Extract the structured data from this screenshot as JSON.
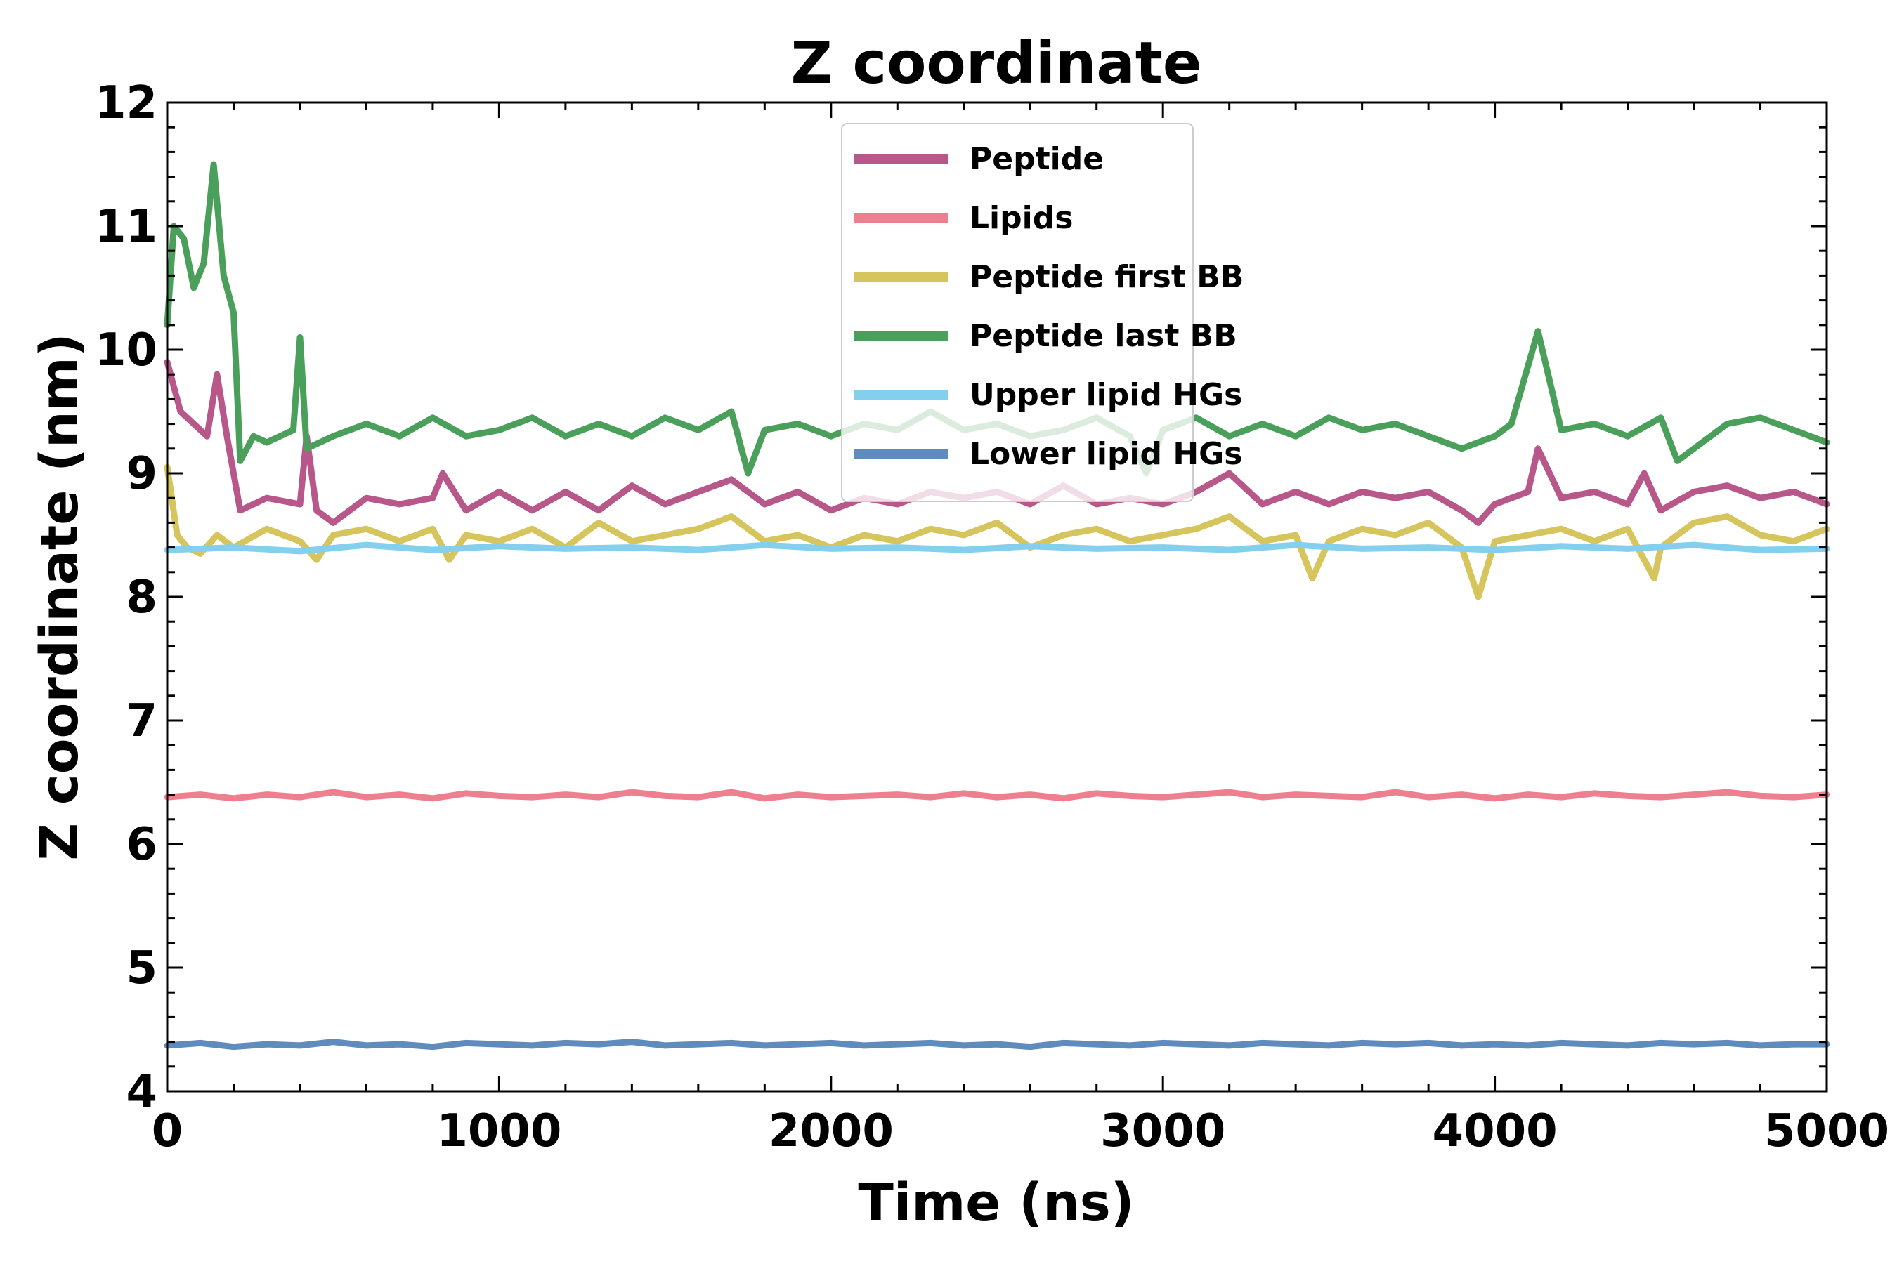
{
  "chart_data": {
    "type": "line",
    "title": "Z coordinate",
    "xlabel": "Time (ns)",
    "ylabel": "Z coordinate (nm)",
    "xlim": [
      0,
      5000
    ],
    "ylim": [
      4,
      12
    ],
    "xticks": [
      0,
      1000,
      2000,
      3000,
      4000,
      5000
    ],
    "yticks": [
      4,
      5,
      6,
      7,
      8,
      9,
      10,
      11,
      12
    ],
    "grid": false,
    "legend_position": "upper-center",
    "series": [
      {
        "name": "Peptide",
        "color": "#b8578a",
        "points": [
          [
            0,
            9.9
          ],
          [
            40,
            9.5
          ],
          [
            80,
            9.4
          ],
          [
            120,
            9.3
          ],
          [
            150,
            9.8
          ],
          [
            180,
            9.3
          ],
          [
            220,
            8.7
          ],
          [
            300,
            8.8
          ],
          [
            400,
            8.75
          ],
          [
            420,
            9.3
          ],
          [
            450,
            8.7
          ],
          [
            500,
            8.6
          ],
          [
            600,
            8.8
          ],
          [
            700,
            8.75
          ],
          [
            800,
            8.8
          ],
          [
            830,
            9.0
          ],
          [
            900,
            8.7
          ],
          [
            1000,
            8.85
          ],
          [
            1100,
            8.7
          ],
          [
            1200,
            8.85
          ],
          [
            1300,
            8.7
          ],
          [
            1400,
            8.9
          ],
          [
            1500,
            8.75
          ],
          [
            1600,
            8.85
          ],
          [
            1700,
            8.95
          ],
          [
            1800,
            8.75
          ],
          [
            1900,
            8.85
          ],
          [
            2000,
            8.7
          ],
          [
            2100,
            8.8
          ],
          [
            2200,
            8.75
          ],
          [
            2300,
            8.85
          ],
          [
            2400,
            8.8
          ],
          [
            2500,
            8.85
          ],
          [
            2600,
            8.75
          ],
          [
            2700,
            8.9
          ],
          [
            2800,
            8.75
          ],
          [
            2900,
            8.8
          ],
          [
            3000,
            8.75
          ],
          [
            3100,
            8.85
          ],
          [
            3200,
            9.0
          ],
          [
            3300,
            8.75
          ],
          [
            3400,
            8.85
          ],
          [
            3500,
            8.75
          ],
          [
            3600,
            8.85
          ],
          [
            3700,
            8.8
          ],
          [
            3800,
            8.85
          ],
          [
            3900,
            8.7
          ],
          [
            3950,
            8.6
          ],
          [
            4000,
            8.75
          ],
          [
            4100,
            8.85
          ],
          [
            4130,
            9.2
          ],
          [
            4200,
            8.8
          ],
          [
            4300,
            8.85
          ],
          [
            4400,
            8.75
          ],
          [
            4450,
            9.0
          ],
          [
            4500,
            8.7
          ],
          [
            4600,
            8.85
          ],
          [
            4700,
            8.9
          ],
          [
            4800,
            8.8
          ],
          [
            4900,
            8.85
          ],
          [
            5000,
            8.75
          ]
        ]
      },
      {
        "name": "Lipids",
        "color": "#ee7f8f",
        "points": [
          [
            0,
            6.38
          ],
          [
            100,
            6.4
          ],
          [
            200,
            6.37
          ],
          [
            300,
            6.4
          ],
          [
            400,
            6.38
          ],
          [
            500,
            6.42
          ],
          [
            600,
            6.38
          ],
          [
            700,
            6.4
          ],
          [
            800,
            6.37
          ],
          [
            900,
            6.41
          ],
          [
            1000,
            6.39
          ],
          [
            1100,
            6.38
          ],
          [
            1200,
            6.4
          ],
          [
            1300,
            6.38
          ],
          [
            1400,
            6.42
          ],
          [
            1500,
            6.39
          ],
          [
            1600,
            6.38
          ],
          [
            1700,
            6.42
          ],
          [
            1800,
            6.37
          ],
          [
            1900,
            6.4
          ],
          [
            2000,
            6.38
          ],
          [
            2100,
            6.39
          ],
          [
            2200,
            6.4
          ],
          [
            2300,
            6.38
          ],
          [
            2400,
            6.41
          ],
          [
            2500,
            6.38
          ],
          [
            2600,
            6.4
          ],
          [
            2700,
            6.37
          ],
          [
            2800,
            6.41
          ],
          [
            2900,
            6.39
          ],
          [
            3000,
            6.38
          ],
          [
            3100,
            6.4
          ],
          [
            3200,
            6.42
          ],
          [
            3300,
            6.38
          ],
          [
            3400,
            6.4
          ],
          [
            3500,
            6.39
          ],
          [
            3600,
            6.38
          ],
          [
            3700,
            6.42
          ],
          [
            3800,
            6.38
          ],
          [
            3900,
            6.4
          ],
          [
            4000,
            6.37
          ],
          [
            4100,
            6.4
          ],
          [
            4200,
            6.38
          ],
          [
            4300,
            6.41
          ],
          [
            4400,
            6.39
          ],
          [
            4500,
            6.38
          ],
          [
            4600,
            6.4
          ],
          [
            4700,
            6.42
          ],
          [
            4800,
            6.39
          ],
          [
            4900,
            6.38
          ],
          [
            5000,
            6.4
          ]
        ]
      },
      {
        "name": "Peptide first BB",
        "color": "#d6c55c",
        "points": [
          [
            0,
            9.05
          ],
          [
            30,
            8.5
          ],
          [
            60,
            8.4
          ],
          [
            100,
            8.35
          ],
          [
            150,
            8.5
          ],
          [
            200,
            8.4
          ],
          [
            300,
            8.55
          ],
          [
            400,
            8.45
          ],
          [
            450,
            8.3
          ],
          [
            500,
            8.5
          ],
          [
            600,
            8.55
          ],
          [
            700,
            8.45
          ],
          [
            800,
            8.55
          ],
          [
            850,
            8.3
          ],
          [
            900,
            8.5
          ],
          [
            1000,
            8.45
          ],
          [
            1100,
            8.55
          ],
          [
            1200,
            8.4
          ],
          [
            1300,
            8.6
          ],
          [
            1400,
            8.45
          ],
          [
            1500,
            8.5
          ],
          [
            1600,
            8.55
          ],
          [
            1700,
            8.65
          ],
          [
            1800,
            8.45
          ],
          [
            1900,
            8.5
          ],
          [
            2000,
            8.4
          ],
          [
            2100,
            8.5
          ],
          [
            2200,
            8.45
          ],
          [
            2300,
            8.55
          ],
          [
            2400,
            8.5
          ],
          [
            2500,
            8.6
          ],
          [
            2600,
            8.4
          ],
          [
            2700,
            8.5
          ],
          [
            2800,
            8.55
          ],
          [
            2900,
            8.45
          ],
          [
            3000,
            8.5
          ],
          [
            3100,
            8.55
          ],
          [
            3200,
            8.65
          ],
          [
            3300,
            8.45
          ],
          [
            3400,
            8.5
          ],
          [
            3450,
            8.15
          ],
          [
            3500,
            8.45
          ],
          [
            3600,
            8.55
          ],
          [
            3700,
            8.5
          ],
          [
            3800,
            8.6
          ],
          [
            3900,
            8.4
          ],
          [
            3950,
            8.0
          ],
          [
            4000,
            8.45
          ],
          [
            4100,
            8.5
          ],
          [
            4200,
            8.55
          ],
          [
            4300,
            8.45
          ],
          [
            4400,
            8.55
          ],
          [
            4480,
            8.15
          ],
          [
            4500,
            8.4
          ],
          [
            4600,
            8.6
          ],
          [
            4700,
            8.65
          ],
          [
            4800,
            8.5
          ],
          [
            4900,
            8.45
          ],
          [
            5000,
            8.55
          ]
        ]
      },
      {
        "name": "Peptide last BB",
        "color": "#4aa05a",
        "points": [
          [
            0,
            10.2
          ],
          [
            20,
            11.0
          ],
          [
            50,
            10.9
          ],
          [
            80,
            10.5
          ],
          [
            110,
            10.7
          ],
          [
            140,
            11.5
          ],
          [
            170,
            10.6
          ],
          [
            200,
            10.3
          ],
          [
            220,
            9.1
          ],
          [
            260,
            9.3
          ],
          [
            300,
            9.25
          ],
          [
            380,
            9.35
          ],
          [
            400,
            10.1
          ],
          [
            420,
            9.2
          ],
          [
            500,
            9.3
          ],
          [
            600,
            9.4
          ],
          [
            700,
            9.3
          ],
          [
            800,
            9.45
          ],
          [
            900,
            9.3
          ],
          [
            1000,
            9.35
          ],
          [
            1100,
            9.45
          ],
          [
            1200,
            9.3
          ],
          [
            1300,
            9.4
          ],
          [
            1400,
            9.3
          ],
          [
            1500,
            9.45
          ],
          [
            1600,
            9.35
          ],
          [
            1700,
            9.5
          ],
          [
            1750,
            9.0
          ],
          [
            1800,
            9.35
          ],
          [
            1900,
            9.4
          ],
          [
            2000,
            9.3
          ],
          [
            2100,
            9.4
          ],
          [
            2200,
            9.35
          ],
          [
            2300,
            9.5
          ],
          [
            2400,
            9.35
          ],
          [
            2500,
            9.4
          ],
          [
            2600,
            9.3
          ],
          [
            2700,
            9.35
          ],
          [
            2800,
            9.45
          ],
          [
            2900,
            9.3
          ],
          [
            2950,
            9.0
          ],
          [
            3000,
            9.35
          ],
          [
            3100,
            9.45
          ],
          [
            3200,
            9.3
          ],
          [
            3300,
            9.4
          ],
          [
            3400,
            9.3
          ],
          [
            3500,
            9.45
          ],
          [
            3600,
            9.35
          ],
          [
            3700,
            9.4
          ],
          [
            3800,
            9.3
          ],
          [
            3900,
            9.2
          ],
          [
            4000,
            9.3
          ],
          [
            4050,
            9.4
          ],
          [
            4130,
            10.15
          ],
          [
            4200,
            9.35
          ],
          [
            4300,
            9.4
          ],
          [
            4400,
            9.3
          ],
          [
            4500,
            9.45
          ],
          [
            4550,
            9.1
          ],
          [
            4600,
            9.2
          ],
          [
            4700,
            9.4
          ],
          [
            4800,
            9.45
          ],
          [
            4900,
            9.35
          ],
          [
            5000,
            9.25
          ]
        ]
      },
      {
        "name": "Upper lipid HGs",
        "color": "#84cfee",
        "points": [
          [
            0,
            8.38
          ],
          [
            200,
            8.4
          ],
          [
            400,
            8.37
          ],
          [
            600,
            8.42
          ],
          [
            800,
            8.38
          ],
          [
            1000,
            8.41
          ],
          [
            1200,
            8.39
          ],
          [
            1400,
            8.4
          ],
          [
            1600,
            8.38
          ],
          [
            1800,
            8.42
          ],
          [
            2000,
            8.39
          ],
          [
            2200,
            8.4
          ],
          [
            2400,
            8.38
          ],
          [
            2600,
            8.41
          ],
          [
            2800,
            8.39
          ],
          [
            3000,
            8.4
          ],
          [
            3200,
            8.38
          ],
          [
            3400,
            8.42
          ],
          [
            3600,
            8.39
          ],
          [
            3800,
            8.4
          ],
          [
            4000,
            8.38
          ],
          [
            4200,
            8.41
          ],
          [
            4400,
            8.39
          ],
          [
            4600,
            8.42
          ],
          [
            4800,
            8.38
          ],
          [
            5000,
            8.39
          ]
        ]
      },
      {
        "name": "Lower lipid HGs",
        "color": "#5f8cbc",
        "points": [
          [
            0,
            4.37
          ],
          [
            100,
            4.39
          ],
          [
            200,
            4.36
          ],
          [
            300,
            4.38
          ],
          [
            400,
            4.37
          ],
          [
            500,
            4.4
          ],
          [
            600,
            4.37
          ],
          [
            700,
            4.38
          ],
          [
            800,
            4.36
          ],
          [
            900,
            4.39
          ],
          [
            1000,
            4.38
          ],
          [
            1100,
            4.37
          ],
          [
            1200,
            4.39
          ],
          [
            1300,
            4.38
          ],
          [
            1400,
            4.4
          ],
          [
            1500,
            4.37
          ],
          [
            1600,
            4.38
          ],
          [
            1700,
            4.39
          ],
          [
            1800,
            4.37
          ],
          [
            1900,
            4.38
          ],
          [
            2000,
            4.39
          ],
          [
            2100,
            4.37
          ],
          [
            2200,
            4.38
          ],
          [
            2300,
            4.39
          ],
          [
            2400,
            4.37
          ],
          [
            2500,
            4.38
          ],
          [
            2600,
            4.36
          ],
          [
            2700,
            4.39
          ],
          [
            2800,
            4.38
          ],
          [
            2900,
            4.37
          ],
          [
            3000,
            4.39
          ],
          [
            3100,
            4.38
          ],
          [
            3200,
            4.37
          ],
          [
            3300,
            4.39
          ],
          [
            3400,
            4.38
          ],
          [
            3500,
            4.37
          ],
          [
            3600,
            4.39
          ],
          [
            3700,
            4.38
          ],
          [
            3800,
            4.39
          ],
          [
            3900,
            4.37
          ],
          [
            4000,
            4.38
          ],
          [
            4100,
            4.37
          ],
          [
            4200,
            4.39
          ],
          [
            4300,
            4.38
          ],
          [
            4400,
            4.37
          ],
          [
            4500,
            4.39
          ],
          [
            4600,
            4.38
          ],
          [
            4700,
            4.39
          ],
          [
            4800,
            4.37
          ],
          [
            4900,
            4.38
          ],
          [
            5000,
            4.38
          ]
        ]
      }
    ]
  }
}
